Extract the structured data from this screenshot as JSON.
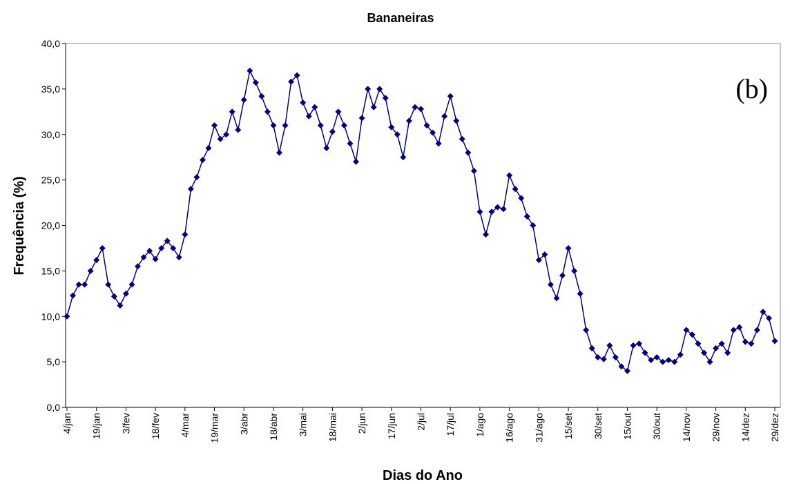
{
  "chart_data": {
    "type": "line",
    "title": "Bananeiras",
    "xlabel": "Dias do Ano",
    "ylabel": "Frequência (%)",
    "annotation": "(b)",
    "color": "#000080",
    "categories": [
      "4/jan",
      null,
      null,
      null,
      null,
      "19/jan",
      null,
      null,
      null,
      null,
      "3/fev",
      null,
      null,
      null,
      null,
      "18/fev",
      null,
      null,
      null,
      null,
      "4/mar",
      null,
      null,
      null,
      null,
      "19/mar",
      null,
      null,
      null,
      null,
      "3/abr",
      null,
      null,
      null,
      null,
      "18/abr",
      null,
      null,
      null,
      null,
      "3/mai",
      null,
      null,
      null,
      null,
      "18/mai",
      null,
      null,
      null,
      null,
      "2/jun",
      null,
      null,
      null,
      null,
      "17/jun",
      null,
      null,
      null,
      null,
      "2/jul",
      null,
      null,
      null,
      null,
      "17/jul",
      null,
      null,
      null,
      null,
      "1/ago",
      null,
      null,
      null,
      null,
      "16/ago",
      null,
      null,
      null,
      null,
      "31/ago",
      null,
      null,
      null,
      null,
      "15/set",
      null,
      null,
      null,
      null,
      "30/set",
      null,
      null,
      null,
      null,
      "15/out",
      null,
      null,
      null,
      null,
      "30/out",
      null,
      null,
      null,
      null,
      "14/nov",
      null,
      null,
      null,
      null,
      "29/nov",
      null,
      null,
      null,
      null,
      "14/dez",
      null,
      null,
      null,
      null,
      "29/dez"
    ],
    "values": [
      10,
      12.3,
      13.5,
      13.5,
      15,
      16.2,
      17.5,
      13.5,
      12.2,
      11.2,
      12.5,
      13.5,
      15.5,
      16.5,
      17.2,
      16.3,
      17.5,
      18.3,
      17.5,
      16.5,
      19,
      24,
      25.3,
      27.2,
      28.5,
      31,
      29.5,
      30,
      32.5,
      30.5,
      33.8,
      37,
      35.7,
      34.2,
      32.5,
      31,
      28,
      31,
      35.8,
      36.5,
      33.5,
      32,
      33,
      31,
      28.5,
      30.3,
      32.5,
      31,
      29,
      27,
      31.8,
      35,
      33,
      35,
      34,
      30.8,
      30,
      27.5,
      31.5,
      33,
      32.8,
      31,
      30.2,
      29,
      32,
      34.2,
      31.5,
      29.5,
      28,
      26,
      21.5,
      19,
      21.5,
      22,
      21.8,
      25.5,
      24,
      23,
      21,
      20,
      16.2,
      16.8,
      13.5,
      12,
      14.5,
      17.5,
      15,
      12.5,
      8.5,
      6.5,
      5.5,
      5.3,
      6.8,
      5.5,
      4.5,
      4,
      6.8,
      7,
      6,
      5.2,
      5.5,
      5,
      5.2,
      5,
      5.8,
      8.5,
      8,
      7,
      6,
      5,
      6.5,
      7,
      6,
      8.5,
      8.8,
      7.2,
      7,
      8.5,
      10.5,
      9.8,
      7.3
    ],
    "ylim": [
      0,
      40
    ],
    "yticks": [
      {
        "value": 0,
        "label": "0,0"
      },
      {
        "value": 5,
        "label": "5,0"
      },
      {
        "value": 10,
        "label": "10,0"
      },
      {
        "value": 15,
        "label": "15,0"
      },
      {
        "value": 20,
        "label": "20,0"
      },
      {
        "value": 25,
        "label": "25,0"
      },
      {
        "value": 30,
        "label": "30,0"
      },
      {
        "value": 35,
        "label": "35,0"
      },
      {
        "value": 40,
        "label": "40,0"
      }
    ]
  }
}
